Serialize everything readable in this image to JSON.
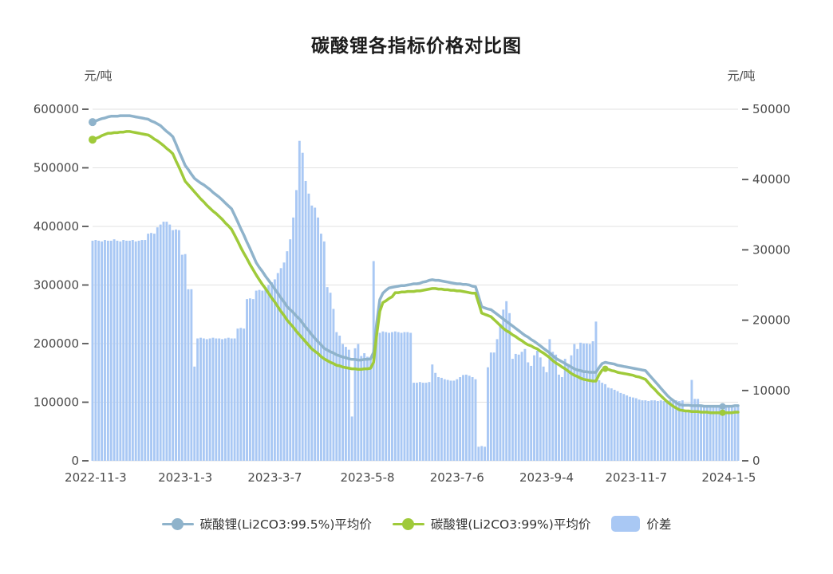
{
  "title": "碳酸锂各指标价格对比图",
  "axes": {
    "left": {
      "name": "元/吨",
      "max": 600000,
      "ticks": [
        0,
        100000,
        200000,
        300000,
        400000,
        500000,
        600000
      ]
    },
    "right": {
      "name": "元/吨",
      "max": 50000,
      "ticks": [
        0,
        10000,
        20000,
        30000,
        40000,
        50000
      ]
    },
    "x": {
      "tick_labels": [
        "2022-11-3",
        "2023-1-3",
        "2023-3-7",
        "2023-5-8",
        "2023-7-6",
        "2023-9-4",
        "2023-11-7",
        "2024-1-5"
      ],
      "tick_indices": [
        1,
        30,
        59,
        89,
        118,
        147,
        176,
        206
      ]
    }
  },
  "legend": [
    {
      "label": "碳酸锂(Li2CO3:99.5%)平均价",
      "type": "line",
      "color": "#8FB3CB"
    },
    {
      "label": "碳酸锂(Li2CO3:99%)平均价",
      "type": "line",
      "color": "#9FCA3A"
    },
    {
      "label": "价差",
      "type": "bar",
      "color": "#A9C8F4"
    }
  ],
  "colors": {
    "line_995": "#8FB3CB",
    "line_99": "#9FCA3A",
    "bar": "#A9C8F4",
    "grid": "#e2e2e2",
    "tick_text": "#4a4a4a",
    "tick_mark": "#555555"
  },
  "chart_data": {
    "type": "mixed line+bar, dual y-axis",
    "x_range": [
      "2022-11-3",
      "2024-1-5"
    ],
    "num_points": 210,
    "grid": true,
    "legend_position": "bottom",
    "series": [
      {
        "name": "碳酸锂(Li2CO3:99.5%)平均价",
        "type": "line",
        "axis": "left",
        "color": "#8FB3CB",
        "marker_indices": [
          0,
          204
        ],
        "values": [
          578000,
          580000,
          582000,
          584000,
          585000,
          587000,
          588000,
          588000,
          588000,
          589000,
          589000,
          589000,
          589000,
          588000,
          587000,
          586000,
          585000,
          584000,
          583000,
          580000,
          578000,
          575000,
          572000,
          567000,
          562000,
          558000,
          553000,
          541000,
          528000,
          516000,
          504000,
          497000,
          489000,
          482000,
          478000,
          474000,
          471000,
          467000,
          463000,
          458000,
          454000,
          450000,
          445000,
          440000,
          435000,
          430000,
          419000,
          408000,
          396000,
          385000,
          373000,
          362000,
          350000,
          338000,
          330000,
          323000,
          315000,
          308000,
          301000,
          293000,
          286000,
          278000,
          271000,
          263000,
          258000,
          253000,
          247000,
          242000,
          235000,
          228000,
          222000,
          215000,
          209000,
          203000,
          198000,
          192000,
          189000,
          186000,
          184000,
          181000,
          179000,
          177000,
          176000,
          174000,
          173000,
          173000,
          172000,
          172000,
          173000,
          173000,
          174000,
          185000,
          235000,
          275000,
          286000,
          291000,
          295000,
          296000,
          297000,
          298000,
          299000,
          299000,
          300000,
          301000,
          302000,
          302000,
          303000,
          305000,
          306000,
          308000,
          309000,
          308000,
          308000,
          307000,
          306000,
          305000,
          304000,
          303000,
          302000,
          302000,
          301000,
          301000,
          300000,
          298000,
          297000,
          280000,
          263000,
          261000,
          259000,
          258000,
          254000,
          250000,
          246000,
          242000,
          238000,
          234000,
          230000,
          226000,
          222000,
          218000,
          214000,
          211000,
          207000,
          204000,
          200000,
          196000,
          192000,
          188000,
          184000,
          179000,
          175000,
          172000,
          169000,
          166000,
          163000,
          160000,
          157000,
          155000,
          154000,
          152000,
          152000,
          151000,
          151000,
          151000,
          159000,
          166000,
          168000,
          167000,
          166000,
          165000,
          163000,
          162000,
          161000,
          160000,
          159000,
          158000,
          157000,
          156000,
          155000,
          154000,
          148000,
          142000,
          136000,
          130000,
          124000,
          118000,
          112000,
          107000,
          103000,
          99000,
          96000,
          95000,
          95000,
          95000,
          94000,
          94000,
          94000,
          94000,
          93000,
          93000,
          93000,
          93000,
          93000,
          93000,
          93000,
          93000,
          93000,
          93000,
          94000,
          94000
        ]
      },
      {
        "name": "碳酸锂(Li2CO3:99%)平均价",
        "type": "line",
        "axis": "left",
        "color": "#9FCA3A",
        "marker_indices": [
          0,
          166,
          204
        ],
        "values": [
          548000,
          550000,
          552000,
          555000,
          557000,
          559000,
          559000,
          560000,
          560000,
          561000,
          561000,
          562000,
          562000,
          561000,
          560000,
          559000,
          558000,
          557000,
          556000,
          553000,
          549000,
          546000,
          542000,
          538000,
          533000,
          529000,
          524000,
          512000,
          501000,
          489000,
          477000,
          471000,
          465000,
          459000,
          453000,
          447000,
          442000,
          436000,
          431000,
          426000,
          422000,
          417000,
          412000,
          406000,
          401000,
          395000,
          385000,
          375000,
          364000,
          354000,
          345000,
          335000,
          326000,
          317000,
          309000,
          301000,
          294000,
          286000,
          278000,
          271000,
          263000,
          255000,
          248000,
          240000,
          234000,
          228000,
          221000,
          215000,
          209000,
          203000,
          197000,
          191000,
          187000,
          183000,
          178000,
          174000,
          171000,
          168000,
          166000,
          163000,
          162000,
          160000,
          159000,
          158000,
          157000,
          157000,
          156000,
          156000,
          157000,
          157000,
          158000,
          168000,
          215000,
          255000,
          270000,
          273000,
          277000,
          280000,
          287000,
          287000,
          288000,
          288000,
          289000,
          289000,
          289000,
          290000,
          290000,
          291000,
          292000,
          293000,
          294000,
          294000,
          293000,
          293000,
          292000,
          292000,
          291000,
          291000,
          290000,
          290000,
          289000,
          288000,
          287000,
          286000,
          286000,
          269000,
          252000,
          250000,
          248000,
          246000,
          241000,
          236000,
          231000,
          226000,
          222000,
          219000,
          215000,
          212000,
          208000,
          205000,
          201000,
          198000,
          196000,
          193000,
          191000,
          187000,
          184000,
          180000,
          176000,
          171000,
          167000,
          164000,
          160000,
          157000,
          153000,
          149000,
          146000,
          144000,
          141000,
          139000,
          138000,
          137000,
          136000,
          136000,
          147000,
          155000,
          157000,
          156000,
          154000,
          153000,
          151000,
          150000,
          149000,
          148000,
          147000,
          146000,
          144000,
          143000,
          141000,
          139000,
          133000,
          127000,
          122000,
          116000,
          111000,
          106000,
          101000,
          97000,
          93000,
          90000,
          87000,
          86000,
          85000,
          85000,
          84000,
          84000,
          84000,
          83000,
          83000,
          83000,
          82000,
          82000,
          82000,
          82000,
          82000,
          82000,
          82000,
          82000,
          83000,
          83000
        ]
      },
      {
        "name": "价差",
        "type": "bar",
        "axis": "right",
        "color": "#A9C8F4",
        "values": [
          31300,
          31400,
          31300,
          31200,
          31400,
          31300,
          31300,
          31500,
          31300,
          31200,
          31400,
          31300,
          31300,
          31400,
          31200,
          31300,
          31400,
          31400,
          32300,
          32400,
          32300,
          33200,
          33600,
          34000,
          34000,
          33600,
          32800,
          32900,
          32800,
          29300,
          29400,
          24400,
          24400,
          13400,
          17400,
          17500,
          17400,
          17300,
          17400,
          17500,
          17400,
          17400,
          17300,
          17400,
          17500,
          17400,
          17400,
          18800,
          18900,
          18800,
          23000,
          23100,
          23000,
          24200,
          24300,
          24200,
          24700,
          25000,
          25400,
          25800,
          26700,
          27400,
          28200,
          29800,
          31500,
          34600,
          38500,
          45500,
          43800,
          39800,
          38000,
          36300,
          36000,
          34600,
          32300,
          31200,
          24700,
          23900,
          21600,
          18300,
          17800,
          16600,
          16200,
          15800,
          6300,
          16000,
          16600,
          14900,
          15300,
          14800,
          14500,
          28400,
          18300,
          18200,
          18400,
          18300,
          18200,
          18300,
          18400,
          18300,
          18200,
          18300,
          18300,
          18200,
          11100,
          11100,
          11200,
          11100,
          11100,
          11200,
          13700,
          12500,
          11900,
          11800,
          11600,
          11500,
          11400,
          11400,
          11600,
          11900,
          12200,
          12250,
          12100,
          11900,
          11600,
          2000,
          2100,
          2000,
          13300,
          15400,
          15400,
          17300,
          19500,
          21500,
          22700,
          21000,
          14500,
          15200,
          15100,
          15500,
          15900,
          14000,
          13500,
          15000,
          15650,
          14700,
          13400,
          12600,
          17300,
          15500,
          15100,
          12250,
          11900,
          14500,
          13700,
          15000,
          16600,
          15900,
          16800,
          16700,
          16700,
          16600,
          17000,
          19800,
          11450,
          11100,
          10900,
          10400,
          10300,
          10100,
          9900,
          9650,
          9500,
          9300,
          9100,
          9000,
          8900,
          8700,
          8600,
          8600,
          8500,
          8600,
          8600,
          8500,
          8600,
          8500,
          8600,
          8600,
          8500,
          8600,
          8500,
          8600,
          7100,
          7100,
          11500,
          8800,
          8800,
          7650,
          7700,
          7650,
          7600,
          7650,
          7700,
          7650,
          7600,
          7650,
          7700,
          7650,
          7600,
          7650
        ]
      }
    ]
  }
}
